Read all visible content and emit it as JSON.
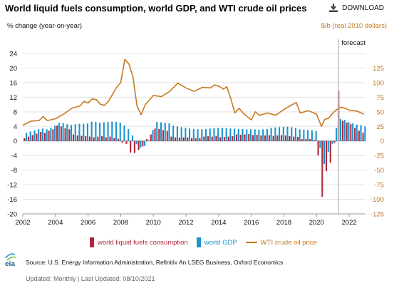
{
  "title": "World liquid fuels consumption, world GDP, and WTI crude oil prices",
  "download_label": "DOWNLOAD",
  "left_axis_label": "% change (year-on-year)",
  "right_axis_label": "$/b (real 2010 dollars)",
  "forecast_label": "forecast",
  "legend": {
    "consumption": "world liquid fuels consumption",
    "gdp": "world GDP",
    "wti": "WTI crude oil price"
  },
  "source": "Source: U.S. Energy Information Administration, Refinitiv An LSEG Business, Oxford Economics",
  "updated": "Updated: Monthly | Last Updated: 08/10/2021",
  "logo_text": "eia",
  "colors": {
    "consumption": "#b0283a",
    "gdp": "#1b93cf",
    "wti": "#c87820",
    "forecast_line": "#bdbdbd"
  },
  "chart_data": {
    "type": "bar",
    "x_range": [
      2002,
      2023
    ],
    "x_ticks": [
      2002,
      2004,
      2006,
      2008,
      2010,
      2012,
      2014,
      2016,
      2018,
      2020,
      2022
    ],
    "left_ylim": [
      -20,
      24
    ],
    "left_ticks": [
      -20,
      -16,
      -12,
      -8,
      -4,
      0,
      4,
      8,
      12,
      16,
      20,
      24
    ],
    "right_ylim": [
      -125,
      150
    ],
    "right_ticks": [
      -125,
      -100,
      -75,
      -50,
      -25,
      0,
      25,
      50,
      75,
      100,
      125
    ],
    "forecast_start": 2021.35,
    "series": [
      {
        "name": "world liquid fuels consumption",
        "axis": "left",
        "x": [
          2002.1,
          2002.35,
          2002.6,
          2002.85,
          2003.1,
          2003.35,
          2003.6,
          2003.85,
          2004.1,
          2004.35,
          2004.6,
          2004.85,
          2005.1,
          2005.35,
          2005.6,
          2005.85,
          2006.1,
          2006.35,
          2006.6,
          2006.85,
          2007.1,
          2007.35,
          2007.6,
          2007.85,
          2008.1,
          2008.35,
          2008.6,
          2008.85,
          2009.1,
          2009.35,
          2009.6,
          2009.85,
          2010.1,
          2010.35,
          2010.6,
          2010.85,
          2011.1,
          2011.35,
          2011.6,
          2011.85,
          2012.1,
          2012.35,
          2012.6,
          2012.85,
          2013.1,
          2013.35,
          2013.6,
          2013.85,
          2014.1,
          2014.35,
          2014.6,
          2014.85,
          2015.1,
          2015.35,
          2015.6,
          2015.85,
          2016.1,
          2016.35,
          2016.6,
          2016.85,
          2017.1,
          2017.35,
          2017.6,
          2017.85,
          2018.1,
          2018.35,
          2018.6,
          2018.85,
          2019.1,
          2019.35,
          2019.6,
          2019.85,
          2020.1,
          2020.35,
          2020.6,
          2020.85,
          2021.1,
          2021.35,
          2021.6,
          2021.85,
          2022.1,
          2022.35,
          2022.6,
          2022.85
        ],
        "values": [
          0.8,
          1.2,
          1.6,
          2.0,
          2.5,
          2.2,
          2.8,
          3.2,
          4.2,
          4.0,
          3.5,
          3.2,
          1.8,
          1.5,
          1.4,
          1.3,
          1.2,
          1.0,
          1.2,
          1.3,
          1.0,
          1.2,
          0.8,
          0.6,
          -0.5,
          -0.8,
          -3.2,
          -3.3,
          -2.5,
          -1.5,
          0.5,
          1.8,
          3.4,
          3.3,
          3.0,
          2.8,
          1.2,
          1.0,
          0.9,
          1.0,
          1.0,
          0.8,
          0.7,
          0.8,
          1.2,
          1.3,
          1.2,
          1.4,
          1.0,
          1.1,
          1.2,
          1.3,
          1.8,
          1.7,
          1.8,
          1.9,
          1.6,
          1.7,
          1.5,
          1.5,
          1.6,
          1.4,
          1.5,
          1.6,
          1.5,
          1.3,
          1.2,
          1.1,
          0.5,
          0.6,
          0.5,
          0.3,
          -4.0,
          -15.3,
          -8.3,
          -6.0,
          -0.5,
          13.8,
          5.5,
          5.0,
          4.6,
          3.6,
          2.8,
          2.3
        ]
      },
      {
        "name": "world GDP",
        "axis": "left",
        "x": [
          2002.22,
          2002.47,
          2002.72,
          2002.97,
          2003.22,
          2003.47,
          2003.72,
          2003.97,
          2004.22,
          2004.47,
          2004.72,
          2004.97,
          2005.22,
          2005.47,
          2005.72,
          2005.97,
          2006.22,
          2006.47,
          2006.72,
          2006.97,
          2007.22,
          2007.47,
          2007.72,
          2007.97,
          2008.22,
          2008.47,
          2008.72,
          2008.97,
          2009.22,
          2009.47,
          2009.72,
          2009.97,
          2010.22,
          2010.47,
          2010.72,
          2010.97,
          2011.22,
          2011.47,
          2011.72,
          2011.97,
          2012.22,
          2012.47,
          2012.72,
          2012.97,
          2013.22,
          2013.47,
          2013.72,
          2013.97,
          2014.22,
          2014.47,
          2014.72,
          2014.97,
          2015.22,
          2015.47,
          2015.72,
          2015.97,
          2016.22,
          2016.47,
          2016.72,
          2016.97,
          2017.22,
          2017.47,
          2017.72,
          2017.97,
          2018.22,
          2018.47,
          2018.72,
          2018.97,
          2019.22,
          2019.47,
          2019.72,
          2019.97,
          2020.22,
          2020.47,
          2020.72,
          2020.97,
          2021.22,
          2021.47,
          2021.72,
          2021.97,
          2022.22,
          2022.47,
          2022.72,
          2022.97
        ],
        "values": [
          2.2,
          2.6,
          2.9,
          3.2,
          3.4,
          3.2,
          3.6,
          4.2,
          5.0,
          4.9,
          4.6,
          4.4,
          4.6,
          4.7,
          4.7,
          4.8,
          5.3,
          5.2,
          5.0,
          5.1,
          5.2,
          5.3,
          5.2,
          5.0,
          4.2,
          3.3,
          1.5,
          -0.8,
          -1.8,
          -1.4,
          0.2,
          3.0,
          5.2,
          5.1,
          5.0,
          4.8,
          4.2,
          4.0,
          3.8,
          3.6,
          3.4,
          3.3,
          3.2,
          3.2,
          3.3,
          3.4,
          3.5,
          3.6,
          3.6,
          3.5,
          3.4,
          3.4,
          3.3,
          3.3,
          3.2,
          3.2,
          3.2,
          3.1,
          3.2,
          3.3,
          3.6,
          3.7,
          3.8,
          3.9,
          3.9,
          3.8,
          3.5,
          3.2,
          3.1,
          3.0,
          2.9,
          2.7,
          -2.0,
          -6.3,
          -3.0,
          -0.8,
          3.5,
          6.0,
          5.8,
          5.2,
          4.8,
          4.5,
          4.3,
          4.0
        ]
      },
      {
        "name": "WTI crude oil price",
        "axis": "right",
        "type": "line",
        "x": [
          2002.0,
          2002.5,
          2003.0,
          2003.25,
          2003.5,
          2004.0,
          2004.5,
          2005.0,
          2005.5,
          2005.75,
          2006.0,
          2006.25,
          2006.5,
          2006.75,
          2007.0,
          2007.25,
          2007.5,
          2007.75,
          2008.0,
          2008.25,
          2008.5,
          2008.75,
          2009.0,
          2009.25,
          2009.5,
          2010.0,
          2010.5,
          2011.0,
          2011.5,
          2012.0,
          2012.5,
          2013.0,
          2013.5,
          2013.75,
          2014.0,
          2014.3,
          2014.5,
          2014.75,
          2015.0,
          2015.25,
          2015.5,
          2016.0,
          2016.25,
          2016.5,
          2017.0,
          2017.5,
          2018.0,
          2018.5,
          2018.75,
          2019.0,
          2019.5,
          2020.0,
          2020.3,
          2020.5,
          2020.75,
          2021.0,
          2021.25,
          2021.5,
          2021.75,
          2022.0,
          2022.5,
          2022.9
        ],
        "values": [
          27,
          34,
          35,
          42,
          35,
          38,
          46,
          56,
          60,
          68,
          65,
          72,
          71,
          63,
          61,
          68,
          80,
          92,
          100,
          140,
          132,
          110,
          60,
          45,
          62,
          78,
          76,
          85,
          99,
          91,
          85,
          92,
          91,
          96,
          94,
          89,
          93,
          72,
          48,
          56,
          48,
          36,
          50,
          44,
          48,
          44,
          54,
          62,
          66,
          48,
          52,
          46,
          25,
          37,
          39,
          48,
          54,
          58,
          56,
          53,
          51,
          46
        ]
      }
    ]
  }
}
